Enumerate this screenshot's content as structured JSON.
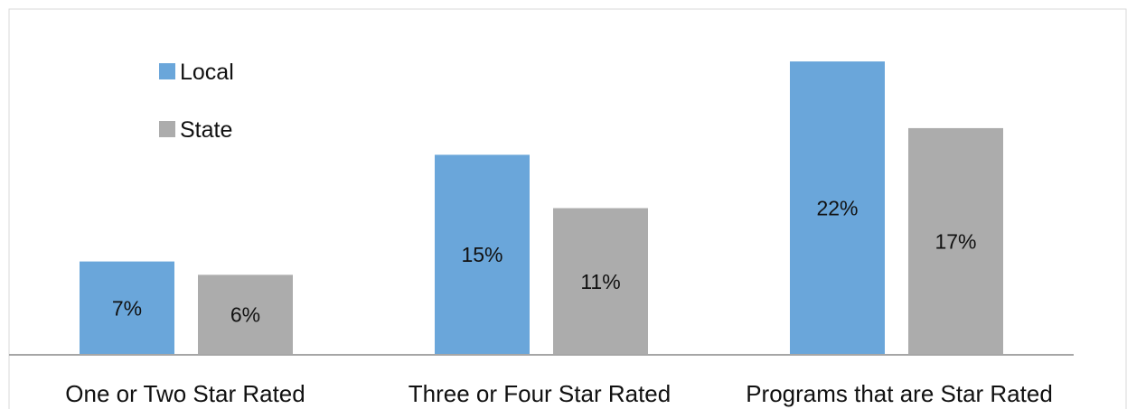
{
  "chart_data": {
    "type": "bar",
    "categories": [
      "One or Two Star Rated",
      "Three or Four Star Rated",
      "Programs that are Star Rated"
    ],
    "series": [
      {
        "name": "Local",
        "values": [
          7,
          15,
          22
        ],
        "labels": [
          "7%",
          "15%",
          "22%"
        ],
        "color": "#6aa6da"
      },
      {
        "name": "State",
        "values": [
          6,
          11,
          17
        ],
        "labels": [
          "6%",
          "11%",
          "17%"
        ],
        "color": "#acacac"
      }
    ],
    "ylim": [
      0,
      25
    ],
    "grid": false,
    "legend_position": "top-left",
    "title": "",
    "xlabel": "",
    "ylabel": ""
  }
}
